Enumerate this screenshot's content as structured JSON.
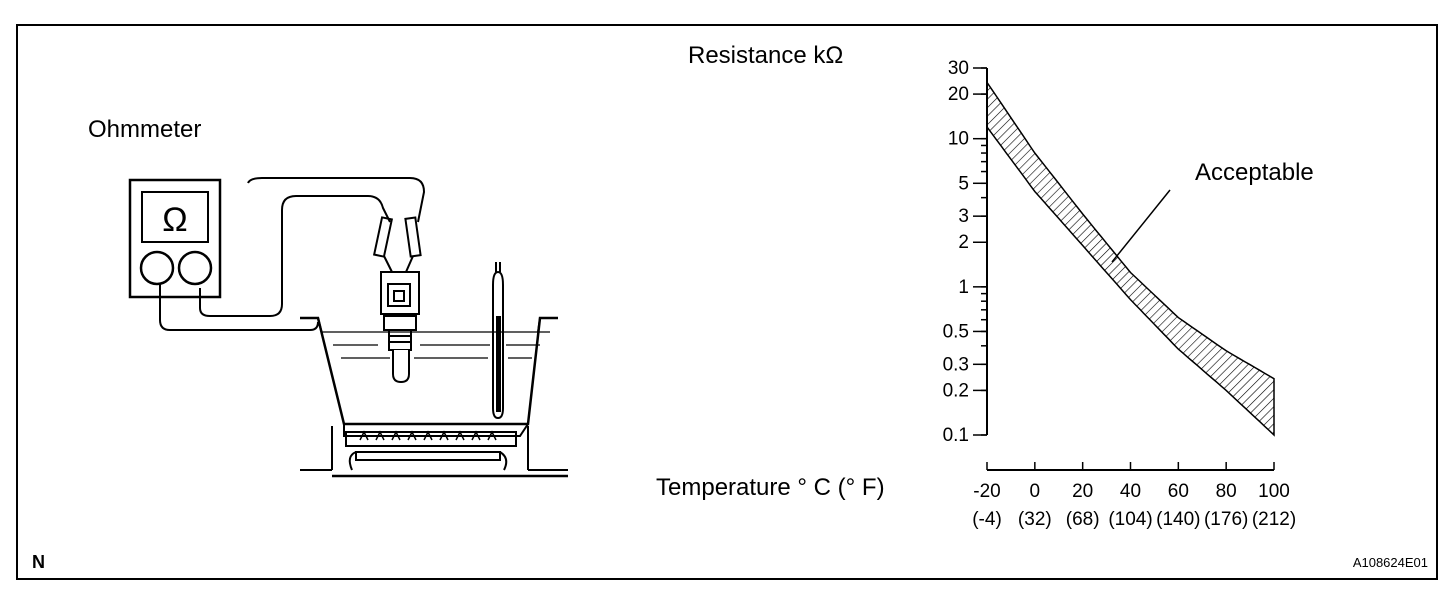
{
  "labels": {
    "ohmmeter": "Ohmmeter",
    "ohm_symbol": "Ω",
    "acceptable": "Acceptable",
    "corner_mark": "N",
    "figure_code": "A108624E01"
  },
  "chart_data": {
    "type": "area",
    "ylabel": "Resistance kΩ",
    "xlabel": "Temperature ° C (° F)",
    "y_scale": "log",
    "ylim": [
      0.1,
      30
    ],
    "xlim": [
      -20,
      100
    ],
    "y_ticks": [
      "30",
      "20",
      "10",
      "5",
      "3",
      "2",
      "1",
      "0.5",
      "0.3",
      "0.2",
      "0.1"
    ],
    "x_ticks": [
      "-20",
      "0",
      "20",
      "40",
      "60",
      "80",
      "100"
    ],
    "x_ticks_f": [
      "(-4)",
      "(32)",
      "(68)",
      "(104)",
      "(140)",
      "(176)",
      "(212)"
    ],
    "series": [
      {
        "x": [
          -20,
          0,
          20,
          40,
          60,
          80,
          100
        ],
        "upper": [
          24,
          8,
          3.1,
          1.25,
          0.62,
          0.37,
          0.24
        ],
        "lower": [
          12,
          4.4,
          1.9,
          0.82,
          0.38,
          0.2,
          0.1
        ]
      }
    ]
  }
}
